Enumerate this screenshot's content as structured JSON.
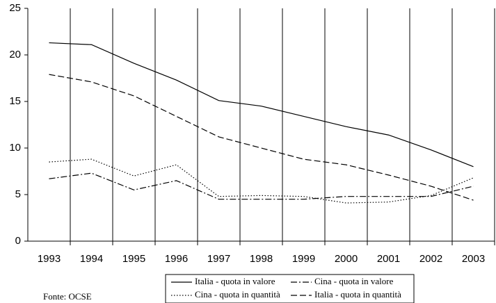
{
  "chart_data": {
    "type": "line",
    "categories": [
      "1993",
      "1994",
      "1995",
      "1996",
      "1997",
      "1998",
      "1999",
      "2000",
      "2001",
      "2002",
      "2003"
    ],
    "series": [
      {
        "name": "Italia - quota in valore",
        "color": "#000000",
        "dash": "solid",
        "values": [
          21.3,
          21.1,
          19.1,
          17.3,
          15.1,
          14.5,
          13.4,
          12.3,
          11.4,
          9.8,
          8.0
        ]
      },
      {
        "name": "Cina - quota in valore",
        "color": "#000000",
        "dash": "dashdot",
        "values": [
          6.7,
          7.3,
          5.5,
          6.5,
          4.5,
          4.5,
          4.5,
          4.8,
          4.8,
          4.8,
          5.9
        ]
      },
      {
        "name": "Cina - quota in quantità",
        "color": "#000000",
        "dash": "dotted",
        "values": [
          8.5,
          8.8,
          7.0,
          8.2,
          4.8,
          4.9,
          4.8,
          4.1,
          4.2,
          4.9,
          6.8
        ]
      },
      {
        "name": "Italia - quota in quantità",
        "color": "#000000",
        "dash": "dashed",
        "values": [
          17.9,
          17.1,
          15.6,
          13.4,
          11.2,
          10.0,
          8.8,
          8.2,
          7.1,
          5.9,
          4.4
        ]
      }
    ],
    "ylim": [
      0,
      25
    ],
    "yticks": [
      0,
      5,
      10,
      15,
      20,
      25
    ],
    "legend": "bottom",
    "source": "Fonte: OCSE"
  }
}
